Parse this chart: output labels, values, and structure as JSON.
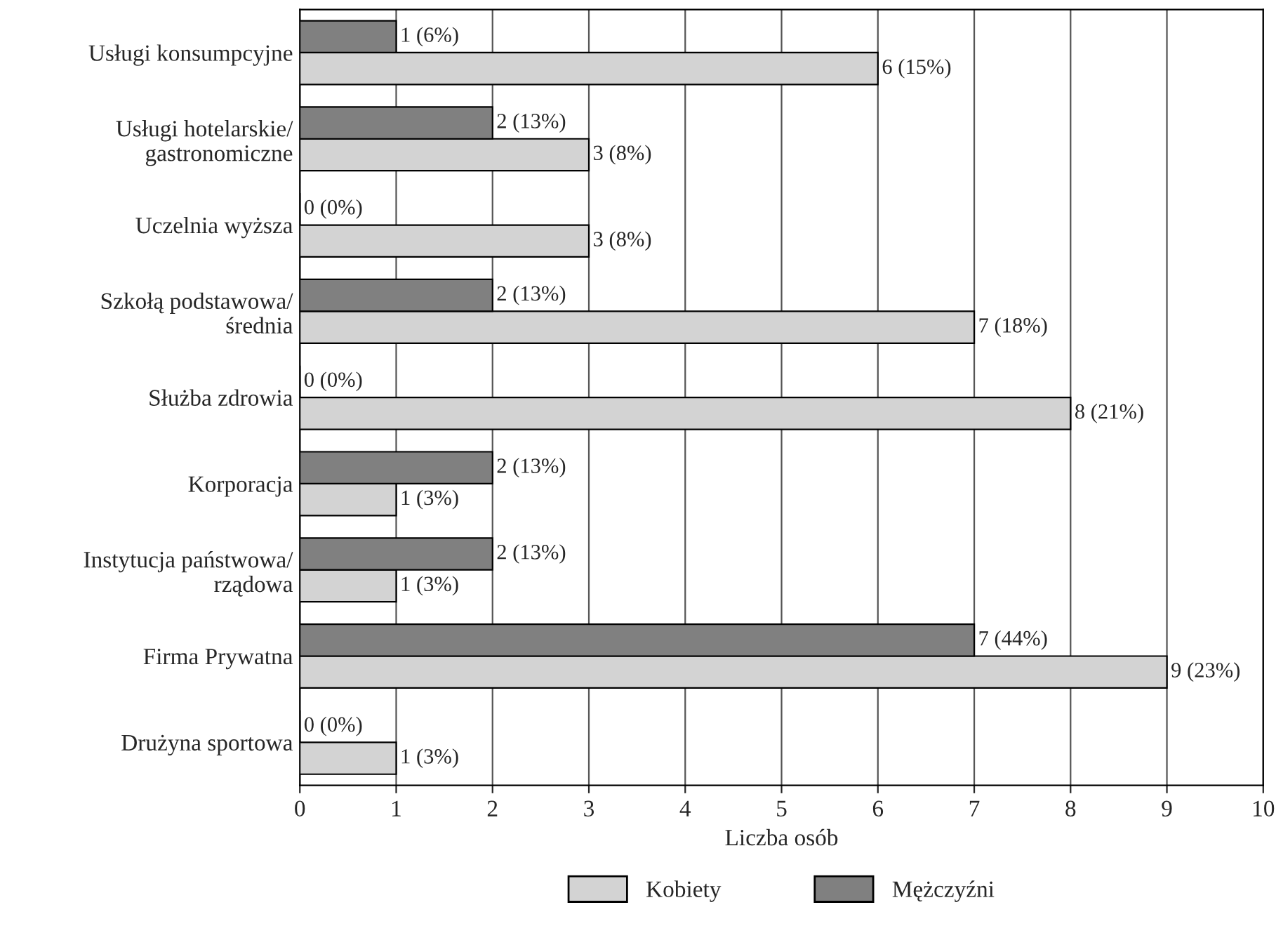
{
  "chart_data": {
    "type": "bar",
    "orientation": "horizontal",
    "xlabel": "Liczba osób",
    "categories": [
      "Usługi konsumpcyjne",
      "Usługi hotelarskie/\ngastronomiczne",
      "Uczelnia wyższa",
      "Szkołą podstawowa/\nśrednia",
      "Służba zdrowia",
      "Korporacja",
      "Instytucja państwowa/\nrządowa",
      "Firma Prywatna",
      "Drużyna sportowa"
    ],
    "series": [
      {
        "name": "Kobiety",
        "color": "#d3d3d3",
        "values": [
          6,
          3,
          3,
          7,
          8,
          1,
          1,
          9,
          1
        ],
        "value_labels": [
          "6 (15%)",
          "3 (8%)",
          "3 (8%)",
          "7 (18%)",
          "8 (21%)",
          "1 (3%)",
          "1 (3%)",
          "9 (23%)",
          "1 (3%)"
        ]
      },
      {
        "name": "Mężczyźni",
        "color": "#808080",
        "values": [
          1,
          2,
          0,
          2,
          0,
          2,
          2,
          7,
          0
        ],
        "value_labels": [
          "1 (6%)",
          "2 (13%)",
          "0 (0%)",
          "2 (13%)",
          "0 (0%)",
          "2 (13%)",
          "2 (13%)",
          "7 (44%)",
          "0 (0%)"
        ]
      }
    ],
    "xlim": [
      0,
      10
    ],
    "xticks": [
      0,
      1,
      2,
      3,
      4,
      5,
      6,
      7,
      8,
      9,
      10
    ],
    "grid": "x",
    "legend": "bottom"
  }
}
